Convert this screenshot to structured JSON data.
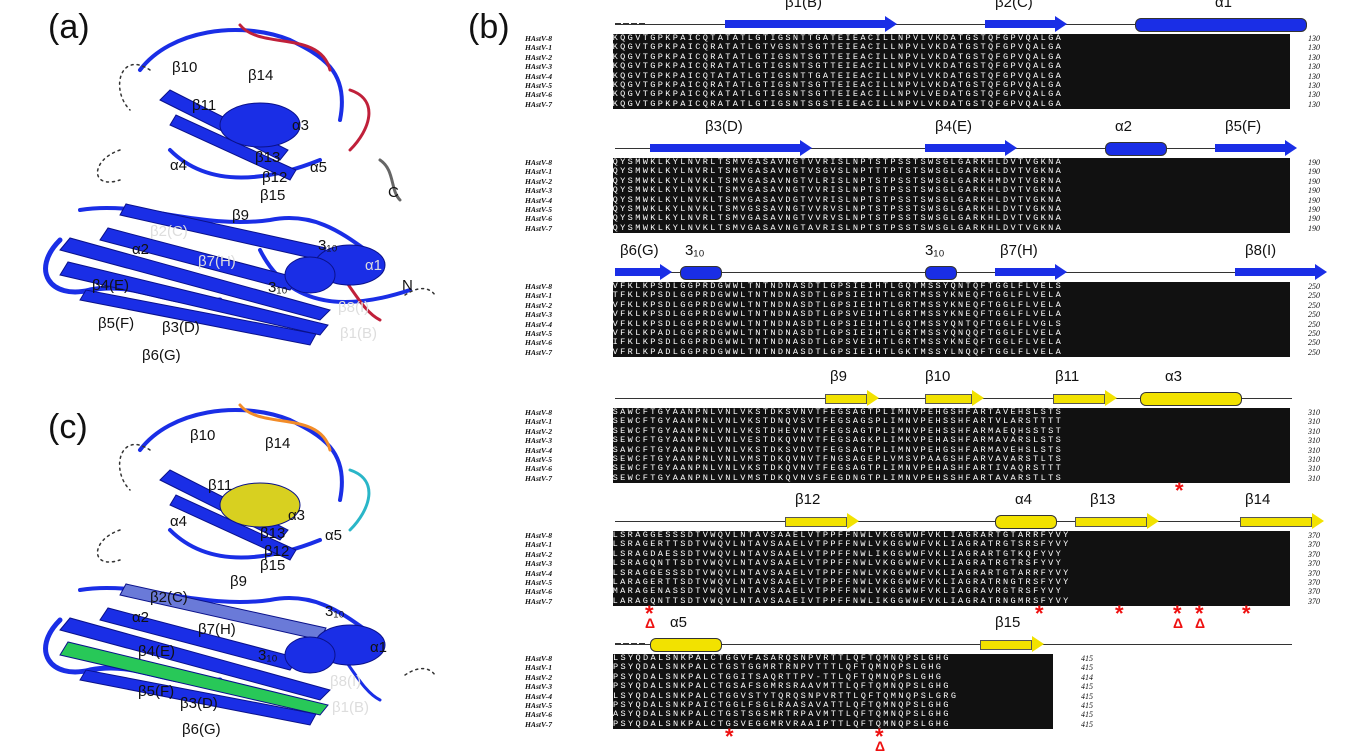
{
  "figure": {
    "panel_a": "(a)",
    "panel_b": "(b)",
    "panel_c": "(c)"
  },
  "structure_a_labels": [
    "β10",
    "β14",
    "β11",
    "α3",
    "α4",
    "β13",
    "α5",
    "β12",
    "β15",
    "β9",
    "C",
    "β2(C)",
    "α2",
    "β7(H)",
    "3₁₀",
    "α1",
    "β4(E)",
    "3₁₀",
    "N",
    "β8(I)",
    "β5(F)",
    "β3(D)",
    "β1(B)",
    "β6(G)"
  ],
  "structure_c_labels": [
    "β10",
    "β14",
    "β11",
    "α3",
    "α4",
    "β13",
    "α5",
    "β12",
    "β15",
    "β9",
    "β2(C)",
    "α2",
    "β7(H)",
    "3₁₀",
    "α1",
    "β4(E)",
    "3₁₀",
    "β8(I)",
    "β5(F)",
    "β3(D)",
    "β1(B)",
    "β6(G)"
  ],
  "alignment": {
    "names": [
      "HAstV-8",
      "HAstV-1",
      "HAstV-2",
      "HAstV-3",
      "HAstV-4",
      "HAstV-5",
      "HAstV-6",
      "HAstV-7"
    ],
    "blocks": [
      {
        "ss_labels": [
          "β1(B)",
          "β2(C)",
          "α1"
        ],
        "end": [
          "130",
          "130",
          "130",
          "130",
          "130",
          "130",
          "130",
          "130"
        ],
        "seqs": [
          "KQGVTGPKPAICQTATATLGTIGSNTTGATEIEACILLNPVLVKDATGSTQFGPVQALGA",
          "KQGVTGPKPAICQRATATLGTVGSNTSGTTEIEACILLNPVLVKDATGSTQFGPVQALGA",
          "KQGVTGPKPAICQRATATLGTIGSNTSGTTEIEACILLNPVLVKDATGSTQFGPVQALGA",
          "KQGVTGPKPAICQRATATLGTIGSNTSGTTEIEACILLNPVLVKDATGSTQFGPVQALGA",
          "KQGVTGPKPAICQTATATLGTIGSNTTGATEIEACILLNPVLVKDATGSTQFGPVQALGA",
          "KQGVTGPKPAICQRATATLGTIGSNTSGTTEIEACILLNPVLVKDATGSTQFGPVQALGA",
          "KQGVTGPKPAICQKATATLGTIGSNTSGTTEIEACILLNPVLVEDATGSTQFGPVQALGA",
          "KQGVTGPKPAICQRATATLGTIGSNTSGSTEIEACILLNPVLVKDATGSTQFGPVQALGA"
        ]
      },
      {
        "ss_labels": [
          "β3(D)",
          "β4(E)",
          "α2",
          "β5(F)"
        ],
        "end": [
          "190",
          "190",
          "190",
          "190",
          "190",
          "190",
          "190",
          "190"
        ],
        "seqs": [
          "QYSMWKLKYLNVRLTSMVGASAVNGTVVRISLNPTSTPSSTSWSGLGARKHLDVTVGKNA",
          "QYSMWKLKYLNVRLTSMVGASAVNGTVSGVSLNPTTTPTSTSWSGLGARKHLDVTVGKNA",
          "QYSMWKLKYLNVKLTSMVGASAVNGTVLRISLNPTSTPSSTSWSGLGARKHMDVTVGRNA",
          "QYSMWKLKYLNVKLTSMVGASAVNGTVVRISLNPTSTPSSTSWSGLGARKHLDVTVGKNA",
          "QYSMWKLKYLNVKLTSMVGASAVDGTVVRISLNPTSTPSSTSWSGLGARKHLDVTVGKNA",
          "QYSMWKLKYLNVKLTSMVGSSAVNGTVVRVSLNPTSTPSSTSWSGLGARKHLDVTVGKNA",
          "QYSMWKLKYLNVRLTSMVGASAVNGTVVRVSLNPTSTPSSTSWSGLGARKHLDVTVGKNA",
          "QYSMWKLKYLNVKLTSMVGASAVNGTAVRISLNPTSTPSSTSWSGLGARKHLDVTVGKNA"
        ]
      },
      {
        "ss_labels": [
          "β6(G)",
          "3₁₀",
          "3₁₀",
          "β7(H)",
          "β8(I)"
        ],
        "end": [
          "250",
          "250",
          "250",
          "250",
          "250",
          "250",
          "250",
          "250"
        ],
        "seqs": [
          "VFKLKPSDLGGPRDGWWLTNTNDNASDTLGPSIEIHTLGQTMSSYQNTQFTGGLFLVELS",
          "TFKLKPSDLGGPRDGWWLTNTNDNASDTLGPSIEIHTLGRTMSSYKNEQFTGGLFLVELA",
          "VFKLKPSDLGGPRDGWWLTNTNDNASDTLGPSIEIHTLGRTMSSYKNEQFTGGLFLVELA",
          "VFKLKPSDLGGPRDGWWLTNTNDNASDTLGPSVEIHTLGRTMSSYKNEQFTGGLFLVELA",
          "VFKLKPSDLGGPRDGWWLTNTNDNASDTLGPSIEIHTLGQTMSSYQNTQFTGGLFLVGLS",
          "VFKLKPADLGGPRDGWWLTNTNDNASDTLGPSIEIHTLGRTMSSYQNQQFTGGLFLVELA",
          "IFKLKPSDLGGPRDGWWLTNTNDNASDTLGPSVEIHTLGRTMSSYKNEQFTGGLFLVELA",
          "VFRLKPADLGGPRDGWWLTNTNDNASDTLGPSIEIHTLGKTMSSYLNQQFTGGLFLVELA"
        ]
      },
      {
        "ss_labels": [
          "β9",
          "β10",
          "β11",
          "α3"
        ],
        "end": [
          "310",
          "310",
          "310",
          "310",
          "310",
          "310",
          "310",
          "310"
        ],
        "seqs": [
          "SAWCFTGYAANPNLVNLVKSTDKSVNVTFEGSAGTPLIMNVPEHGSHFARTAVEHSLSTS",
          "SEWCFTGYAANPNLVNLVKSTDNQVSVTFEGSAGSPLIMNVPEHSSHFARTVLARSTTTT",
          "SEWCFTGYAANPNLVNLVKSTDHEVNVTFEGSAGTPLIMNVPEHSSHFARMAEQHSSTST",
          "SEWCFTGYAANPNLVNLVESTDKQVNVTFEGSAGKPLIMKVPEHASHFARMAVARSLSTS",
          "SAWCFTGYAANPNLVNLVKSTDKSVDVTFEGSAGTPLIMNVPEHGSHFARMAVEHSLSTS",
          "SEWCFTGYAANPNLVNLVMSTDKQVNVTFNGSAGEPLVMSVPAAGSHFARVAVARSTLTS",
          "SEWCFTGYAANPNLVNLVKSTDKQVNVTFEGSAGTPLIMNVPEHASHFARTIVAQRSTTT",
          "SEWCFTGYAANPNLVNLVMSTDKQVNVSFEGDNGTPLIMNVPEHSSHFARTAVARSTLTS"
        ]
      },
      {
        "ss_labels": [
          "β12",
          "α4",
          "β13",
          "β14"
        ],
        "end": [
          "370",
          "370",
          "370",
          "370",
          "370",
          "370",
          "370",
          "370"
        ],
        "seqs": [
          "LSRAGGESSSDTVWQVLNTAVSAAELVTPPFFNWLVKGGWWFVKLIAGRARTGTARRFYVY",
          "LSRAGERTTSDTVWQVLNTAVSAAELVTPPFFNWLVKGGWWFVKLIAGRATRGTSRSFYVY",
          "LSRAGDAESSDTVWQVLNTAVSAAELVTPPFFNWLIKGGWWFVKLIAGRARTGTKQFYVY",
          "LSRAGQNTTSDTVWQVLNTAVSAAELVTPPFFNWLVKGGWWFVKLIAGRATRGTRSFYVY",
          "LSRAGGESSSDTVWQVLNTAVSAAELVTPPFFNWLVKGGWWFVKLIAGRARTGTARRFYVY",
          "LARAGERTTSDTVWQVLNTAVSAAELVTPPFFNWLVKGGWWFVKLIAGRATRNGTRSFYVY",
          "MARAGENASSDTVWQVLNTAVSAAELVTPPFFNWLVKGGWWFVKLIAGRAVRGTRSFYVY",
          "LARAGQNTTSDTVWQVLNTAVSAAEIVTPPFFNWLIKGGWWFVKLIAGRATRNGMRSFYVY"
        ]
      },
      {
        "ss_labels": [
          "α5",
          "β15"
        ],
        "end": [
          "415",
          "415",
          "414",
          "415",
          "415",
          "415",
          "415",
          "415"
        ],
        "seqs": [
          "LSYQDALSNKPALCTGGVFASARQSNPVRTTLQFTQMNQPSLGHG",
          "PSYQDALSNKPALCTGSTGGMRTRNPVTTTLQFTQMNQPSLGHG",
          "PSYQDALSNKPALCTGGITSAQRTTPV-TTLQFTQMNQPSLGHG",
          "PSYQDALSNKPALCTGSAFSGMRSRAAVMTTLQFTQMNQPSLGHG",
          "LSYQDALSNKPALCTGGVSTYTQRQSNPVRTTLQFTQMNQPSLGRG",
          "PSYQDALSNKPAICTGGLFSGLRAASAVATTLQFTQMNQPSLGHG",
          "ASYQDALSNKPALCTGSTSGSMRTRPAVMTTLQFTQMNQPSLGHG",
          "PSYQDALSNKPALCTGSVEGGMRVRAAIPTTLQFTQMNQPSLGHG"
        ]
      }
    ]
  },
  "colors": {
    "strand_blue": "#1a2ee6",
    "strand_yellow": "#f2e200",
    "marker_red": "#e11111"
  }
}
